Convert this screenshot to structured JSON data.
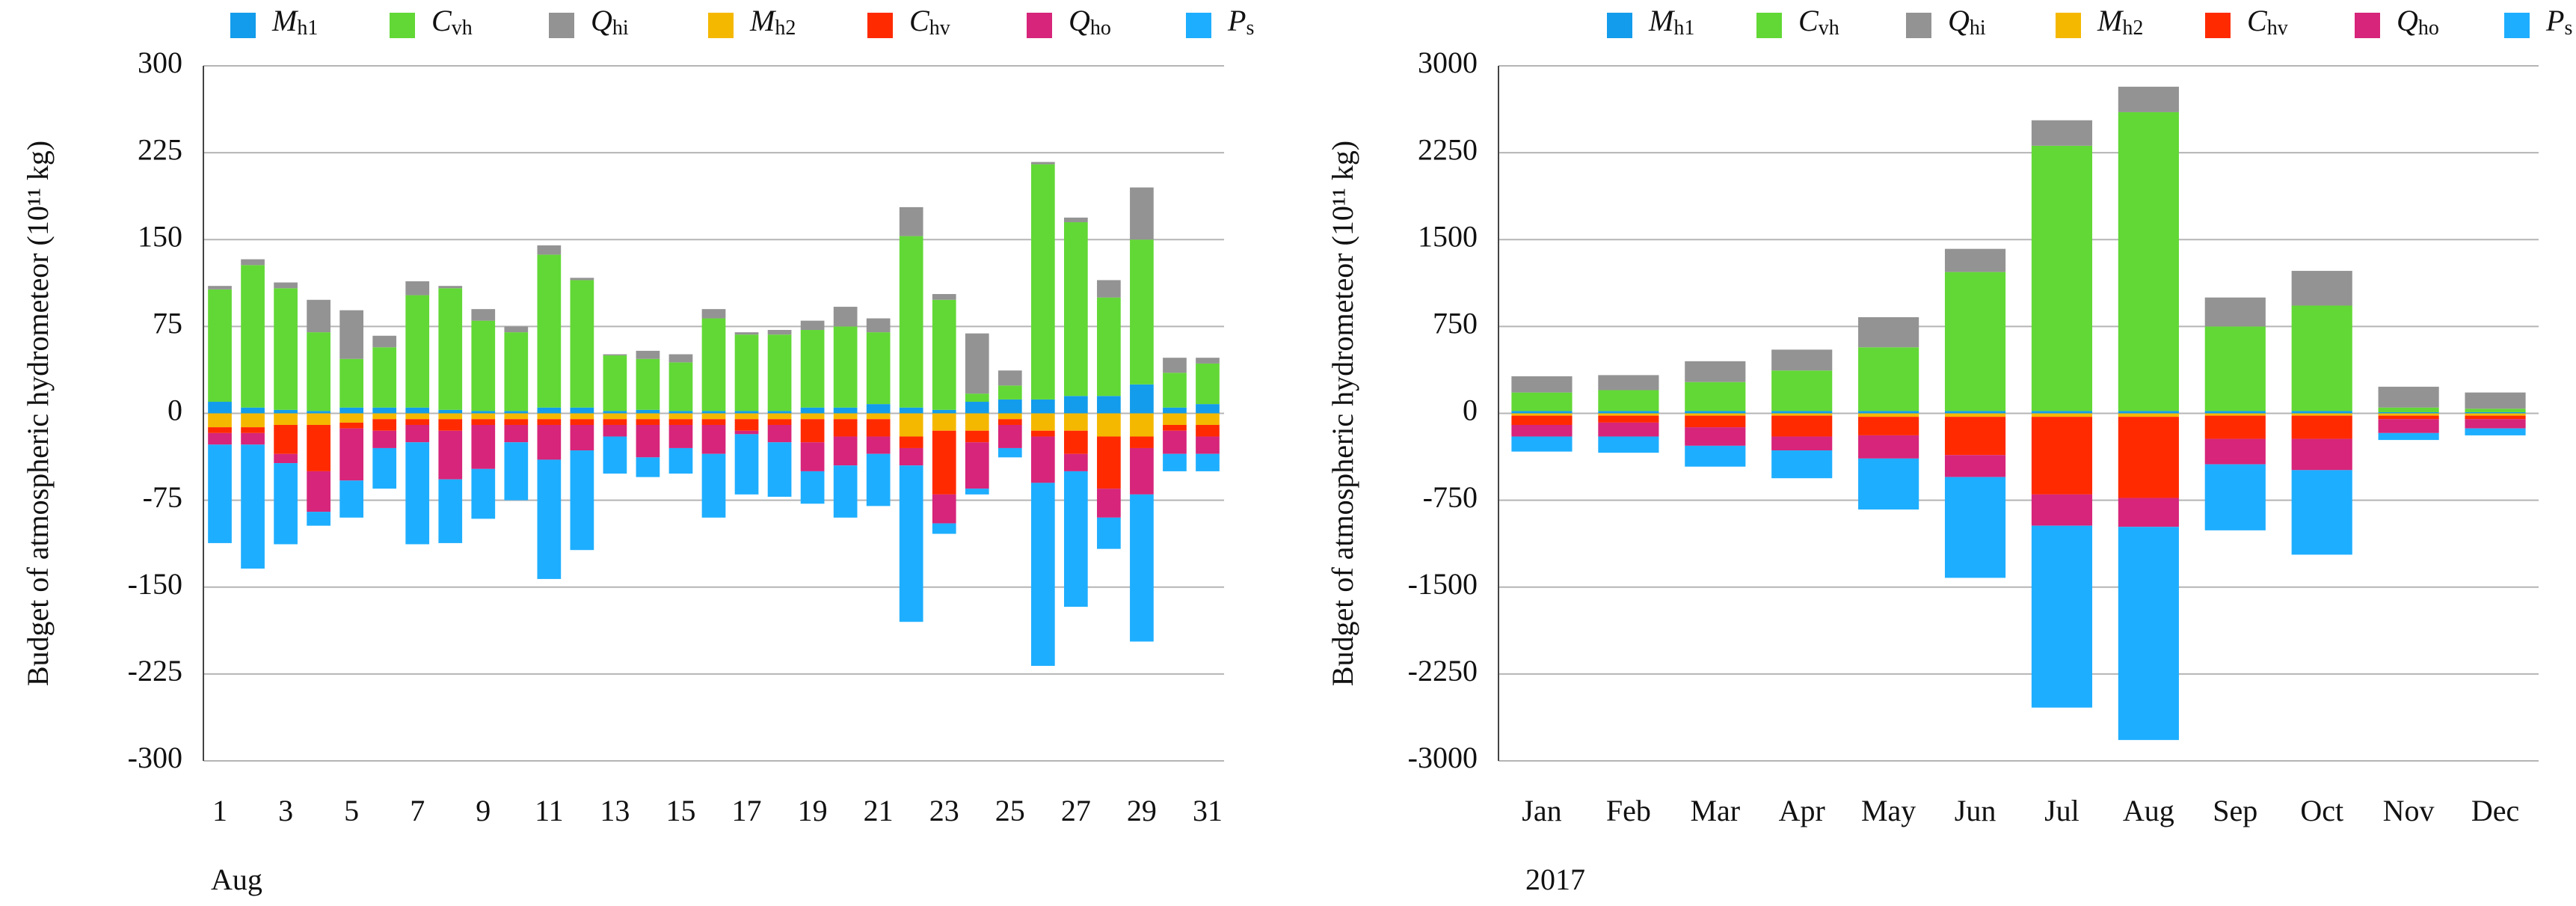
{
  "chart_data": [
    {
      "type": "bar",
      "y_label": "Budget of atmospheric hydrometeor (10¹¹ kg)",
      "x_annotation": "Aug",
      "categories": [
        "1",
        null,
        "3",
        null,
        "5",
        null,
        "7",
        null,
        "9",
        null,
        "11",
        null,
        "13",
        null,
        "15",
        null,
        "17",
        null,
        "19",
        null,
        "21",
        null,
        "23",
        null,
        "25",
        null,
        "27",
        null,
        "29",
        null,
        "31"
      ],
      "ylim": [
        -300,
        300
      ],
      "yticks": [
        300,
        225,
        150,
        75,
        0,
        -75,
        -150,
        -225,
        -300
      ],
      "grid": true,
      "series": [
        {
          "name": "Mh1",
          "color": "#139ceb",
          "values": [
            10,
            5,
            3,
            2,
            5,
            5,
            5,
            3,
            2,
            2,
            5,
            5,
            2,
            3,
            2,
            2,
            2,
            2,
            5,
            5,
            8,
            5,
            3,
            10,
            12,
            12,
            15,
            15,
            25,
            5,
            8
          ]
        },
        {
          "name": "Cvh",
          "color": "#62d836",
          "values": [
            97,
            123,
            105,
            68,
            42,
            52,
            97,
            105,
            78,
            68,
            132,
            110,
            48,
            44,
            42,
            80,
            66,
            66,
            67,
            70,
            62,
            148,
            95,
            7,
            12,
            203,
            150,
            85,
            125,
            30,
            35
          ]
        },
        {
          "name": "Qhi",
          "color": "#939393",
          "values": [
            3,
            5,
            5,
            28,
            42,
            10,
            12,
            2,
            10,
            5,
            8,
            2,
            1,
            7,
            7,
            8,
            2,
            4,
            8,
            17,
            12,
            25,
            5,
            52,
            13,
            2,
            4,
            15,
            45,
            13,
            5
          ]
        },
        {
          "name": "Mh2",
          "color": "#f5b800",
          "values": [
            -12,
            -12,
            -10,
            -10,
            -8,
            -5,
            -5,
            -5,
            -5,
            -5,
            -5,
            -5,
            -5,
            -5,
            -5,
            -5,
            -5,
            -5,
            -5,
            -5,
            -5,
            -20,
            -15,
            -15,
            -5,
            -15,
            -15,
            -20,
            -20,
            -10,
            -10
          ]
        },
        {
          "name": "Chv",
          "color": "#ff2a00",
          "values": [
            -5,
            -5,
            -25,
            -40,
            -5,
            -10,
            -5,
            -10,
            -5,
            -5,
            -5,
            -5,
            -5,
            -5,
            -5,
            -5,
            -10,
            -5,
            -20,
            -15,
            -15,
            -10,
            -55,
            -10,
            -5,
            -5,
            -20,
            -45,
            -10,
            -5,
            -10
          ]
        },
        {
          "name": "Qho",
          "color": "#d6257a",
          "values": [
            -10,
            -10,
            -8,
            -35,
            -45,
            -15,
            -15,
            -42,
            -38,
            -15,
            -30,
            -22,
            -10,
            -28,
            -20,
            -25,
            -3,
            -15,
            -25,
            -25,
            -15,
            -15,
            -25,
            -40,
            -20,
            -40,
            -15,
            -25,
            -40,
            -20,
            -15
          ]
        },
        {
          "name": "Ps",
          "color": "#1eaeff",
          "values": [
            -85,
            -107,
            -70,
            -12,
            -32,
            -35,
            -88,
            -55,
            -43,
            -50,
            -103,
            -86,
            -32,
            -17,
            -22,
            -55,
            -52,
            -47,
            -28,
            -45,
            -45,
            -135,
            -9,
            -5,
            -8,
            -158,
            -117,
            -27,
            -127,
            -15,
            -15
          ]
        }
      ]
    },
    {
      "type": "bar",
      "y_label": "Budget of atmospheric hydrometeor (10¹¹ kg)",
      "x_annotation": "2017",
      "categories": [
        "Jan",
        "Feb",
        "Mar",
        "Apr",
        "May",
        "Jun",
        "Jul",
        "Aug",
        "Sep",
        "Oct",
        "Nov",
        "Dec"
      ],
      "ylim": [
        -3000,
        3000
      ],
      "yticks": [
        3000,
        2250,
        1500,
        750,
        0,
        -750,
        -1500,
        -2250,
        -3000
      ],
      "grid": true,
      "series": [
        {
          "name": "Mh1",
          "color": "#139ceb",
          "values": [
            20,
            20,
            20,
            20,
            20,
            20,
            20,
            20,
            20,
            20,
            10,
            10
          ]
        },
        {
          "name": "Cvh",
          "color": "#62d836",
          "values": [
            160,
            180,
            250,
            350,
            550,
            1200,
            2290,
            2580,
            730,
            910,
            40,
            30
          ]
        },
        {
          "name": "Qhi",
          "color": "#939393",
          "values": [
            140,
            130,
            180,
            180,
            260,
            200,
            220,
            220,
            250,
            300,
            180,
            140
          ]
        },
        {
          "name": "Mh2",
          "color": "#f5b800",
          "values": [
            -20,
            -20,
            -20,
            -20,
            -30,
            -30,
            -30,
            -30,
            -20,
            -20,
            -20,
            -20
          ]
        },
        {
          "name": "Chv",
          "color": "#ff2a00",
          "values": [
            -80,
            -60,
            -100,
            -180,
            -160,
            -330,
            -670,
            -700,
            -200,
            -200,
            -30,
            -30
          ]
        },
        {
          "name": "Qho",
          "color": "#d6257a",
          "values": [
            -100,
            -120,
            -160,
            -120,
            -200,
            -190,
            -270,
            -250,
            -220,
            -270,
            -120,
            -80
          ]
        },
        {
          "name": "Ps",
          "color": "#1eaeff",
          "values": [
            -130,
            -140,
            -180,
            -240,
            -440,
            -870,
            -1570,
            -1840,
            -570,
            -730,
            -60,
            -60
          ]
        }
      ]
    }
  ]
}
